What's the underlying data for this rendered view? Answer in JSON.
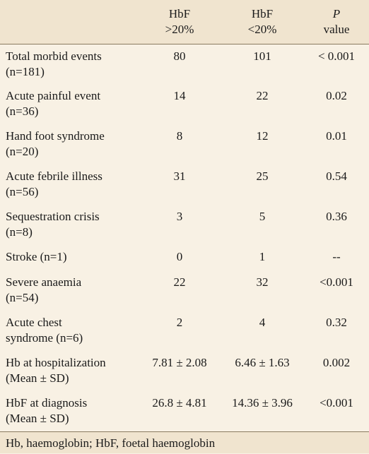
{
  "table": {
    "header": [
      {
        "lines": [
          "HbF",
          ">20%"
        ]
      },
      {
        "lines": [
          "HbF",
          "<20%"
        ]
      },
      {
        "lines": [
          "P",
          "value"
        ]
      }
    ],
    "rows": [
      {
        "label": [
          "Total morbid events",
          "(n=181)"
        ],
        "cells": [
          "80",
          "101",
          "< 0.001"
        ]
      },
      {
        "label": [
          "Acute painful event",
          "(n=36)"
        ],
        "cells": [
          "14",
          "22",
          "0.02"
        ]
      },
      {
        "label": [
          "Hand foot syndrome",
          "(n=20)"
        ],
        "cells": [
          "8",
          "12",
          "0.01"
        ]
      },
      {
        "label": [
          "Acute febrile illness",
          "(n=56)"
        ],
        "cells": [
          "31",
          "25",
          "0.54"
        ]
      },
      {
        "label": [
          "Sequestration crisis",
          "(n=8)"
        ],
        "cells": [
          "3",
          "5",
          "0.36"
        ]
      },
      {
        "label": [
          "Stroke (n=1)"
        ],
        "cells": [
          "0",
          "1",
          "--"
        ]
      },
      {
        "label": [
          "Severe anaemia",
          "(n=54)"
        ],
        "cells": [
          "22",
          "32",
          "<0.001"
        ]
      },
      {
        "label": [
          "Acute chest",
          "syndrome (n=6)"
        ],
        "cells": [
          "2",
          "4",
          "0.32"
        ]
      },
      {
        "label": [
          "Hb at hospitalization",
          "(Mean ± SD)"
        ],
        "cells": [
          "7.81 ± 2.08",
          "6.46 ± 1.63",
          "0.002"
        ]
      },
      {
        "label": [
          "HbF at diagnosis",
          "(Mean ± SD)"
        ],
        "cells": [
          "26.8 ± 4.81",
          "14.36 ± 3.96",
          "<0.001"
        ]
      }
    ],
    "footnote": "Hb, haemoglobin; HbF, foetal haemoglobin"
  }
}
